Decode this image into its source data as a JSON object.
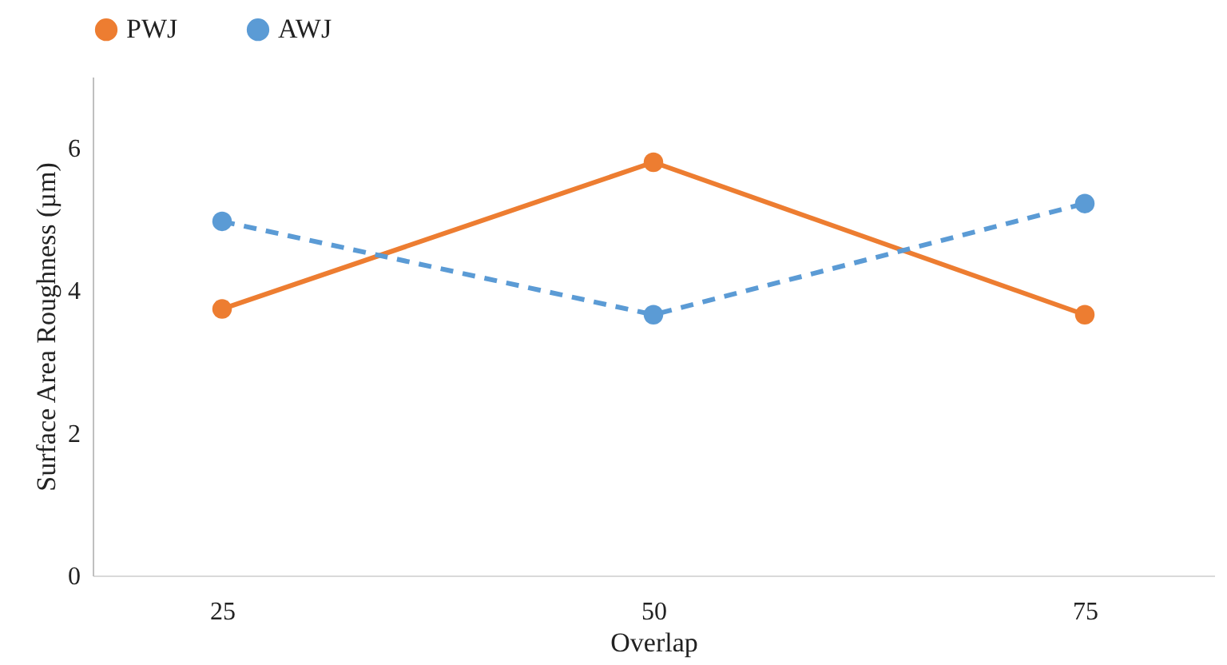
{
  "chart_data": {
    "type": "line",
    "xlabel": "Overlap",
    "ylabel": "Surface Area Roughness (µm)",
    "categories": [
      "25",
      "50",
      "75"
    ],
    "series": [
      {
        "name": "PWJ",
        "color": "#ed7d31",
        "line_style": "solid",
        "values": [
          3.74,
          5.8,
          3.66
        ]
      },
      {
        "name": "AWJ",
        "color": "#5b9bd5",
        "line_style": "dashed",
        "values": [
          4.97,
          3.66,
          5.22
        ]
      }
    ],
    "ylim": [
      0,
      7
    ],
    "yticks": [
      0,
      2,
      4,
      6
    ],
    "grid": false,
    "legend": "top",
    "marker": "circle"
  }
}
